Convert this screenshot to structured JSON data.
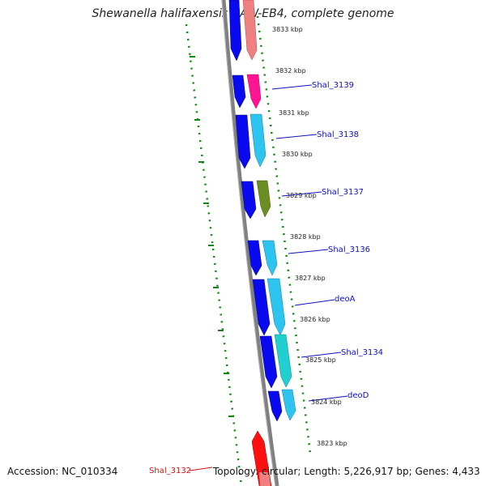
{
  "title": "Shewanella halifaxensis HAW-EB4, complete genome",
  "footer": {
    "accession": "Accession: NC_010334",
    "topology": "Topology: circular; Length: 5,226,917 bp; Genes: 4,433"
  },
  "ruler_labels": [
    "3833 kbp",
    "3832 kbp",
    "3831 kbp",
    "3830 kbp",
    "3829 kbp",
    "3828 kbp",
    "3827 kbp",
    "3826 kbp",
    "3825 kbp",
    "3824 kbp",
    "3823 kbp"
  ],
  "gene_labels": [
    {
      "name": "Shal_3139",
      "color": "#1010c0"
    },
    {
      "name": "Shal_3138",
      "color": "#1010c0"
    },
    {
      "name": "Shal_3137",
      "color": "#1010c0"
    },
    {
      "name": "Shal_3136",
      "color": "#1010c0"
    },
    {
      "name": "deoA",
      "color": "#1010c0"
    },
    {
      "name": "Shal_3134",
      "color": "#1010c0"
    },
    {
      "name": "deoD",
      "color": "#1010c0"
    },
    {
      "name": "Shal_3132",
      "color": "#d01010"
    }
  ],
  "colors": {
    "backbone": "#808080",
    "dots": "#118811",
    "blue_strand": "#0a0af0",
    "salmon": "#f08080",
    "magenta": "#ff1493",
    "sky": "#2ec4f0",
    "olive": "#6b8e23",
    "teal": "#20d0d0",
    "red": "#ff1010"
  }
}
